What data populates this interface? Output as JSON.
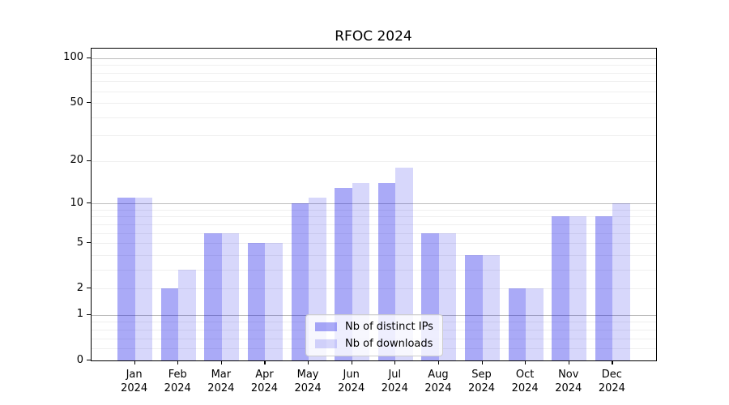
{
  "title": "RFOC 2024",
  "colors": {
    "series_ips": "#0000E655",
    "series_downloads": "#0000E628",
    "major_gridline": "#bdbdbd",
    "minor_gridline": "#efefef",
    "axis": "#000000",
    "background": "#ffffff",
    "legend_border": "#cccccc"
  },
  "chart_data": {
    "type": "bar",
    "title": "RFOC 2024",
    "categories": [
      "Jan",
      "Feb",
      "Mar",
      "Apr",
      "May",
      "Jun",
      "Jul",
      "Aug",
      "Sep",
      "Oct",
      "Nov",
      "Dec"
    ],
    "category_year": "2024",
    "series": [
      {
        "name": "Nb of distinct IPs",
        "values": [
          11,
          2,
          6,
          5,
          10,
          13,
          14,
          6,
          4,
          2,
          8,
          8
        ]
      },
      {
        "name": "Nb of downloads",
        "values": [
          11,
          3,
          6,
          5,
          11,
          14,
          18,
          6,
          4,
          2,
          8,
          10
        ]
      }
    ],
    "xlabel": "",
    "ylabel": "",
    "y_axis": {
      "scale": "log1p",
      "ylim": [
        0,
        116
      ],
      "labeled_ticks": [
        0,
        1,
        2,
        5,
        10,
        20,
        50,
        100
      ],
      "major_gridlines": [
        1,
        10,
        100
      ],
      "minor_gridlines": [
        0.2,
        0.4,
        0.6,
        0.8,
        2,
        3,
        4,
        5,
        6,
        7,
        8,
        9,
        20,
        30,
        40,
        50,
        60,
        70,
        80,
        90
      ]
    },
    "grid": "horizontal",
    "legend_position": "bottom-center"
  }
}
